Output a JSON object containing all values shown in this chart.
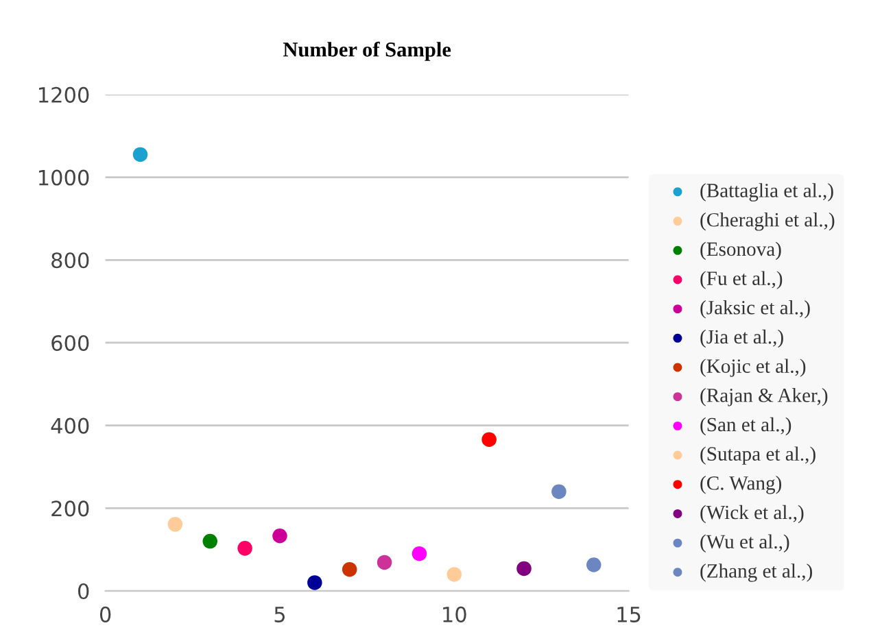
{
  "chart_data": {
    "type": "scatter",
    "title": "Number of Sample",
    "xlim": [
      0,
      15
    ],
    "xticks": [
      0,
      5,
      10,
      15
    ],
    "ylim": [
      0,
      1200
    ],
    "yticks": [
      0,
      200,
      400,
      600,
      800,
      1000,
      1200
    ],
    "grid": "y",
    "legend": "right",
    "marker": "circle",
    "series": [
      {
        "name": "(Battaglia et al.,)",
        "color": "#1aa1cf",
        "x": [
          1
        ],
        "values": [
          1055
        ]
      },
      {
        "name": "(Cheraghi et al.,)",
        "color": "#ffcc99",
        "x": [
          2
        ],
        "values": [
          161
        ]
      },
      {
        "name": "(Esonova)",
        "color": "#008000",
        "x": [
          3
        ],
        "values": [
          120
        ]
      },
      {
        "name": "(Fu et al.,)",
        "color": "#ff0066",
        "x": [
          4
        ],
        "values": [
          103
        ]
      },
      {
        "name": "(Jaksic et al.,)",
        "color": "#cc0099",
        "x": [
          5
        ],
        "values": [
          133
        ]
      },
      {
        "name": "(Jia et al.,)",
        "color": "#000099",
        "x": [
          6
        ],
        "values": [
          20
        ]
      },
      {
        "name": "(Kojic et al.,)",
        "color": "#cc3300",
        "x": [
          7
        ],
        "values": [
          52
        ]
      },
      {
        "name": "(Rajan & Aker,)",
        "color": "#cc3399",
        "x": [
          8
        ],
        "values": [
          69
        ]
      },
      {
        "name": "(San et al.,)",
        "color": "#ff00ff",
        "x": [
          9
        ],
        "values": [
          90
        ]
      },
      {
        "name": "(Sutapa et al.,)",
        "color": "#ffcc99",
        "x": [
          10
        ],
        "values": [
          40
        ]
      },
      {
        "name": "(C. Wang)",
        "color": "#ff0000",
        "x": [
          11
        ],
        "values": [
          366
        ]
      },
      {
        "name": "(Wick et al.,)",
        "color": "#800080",
        "x": [
          12
        ],
        "values": [
          54
        ]
      },
      {
        "name": "(Wu et al.,)",
        "color": "#6b86c0",
        "x": [
          13
        ],
        "values": [
          240
        ]
      },
      {
        "name": "(Zhang et al.,)",
        "color": "#6b86c0",
        "x": [
          14
        ],
        "values": [
          63
        ]
      }
    ]
  }
}
